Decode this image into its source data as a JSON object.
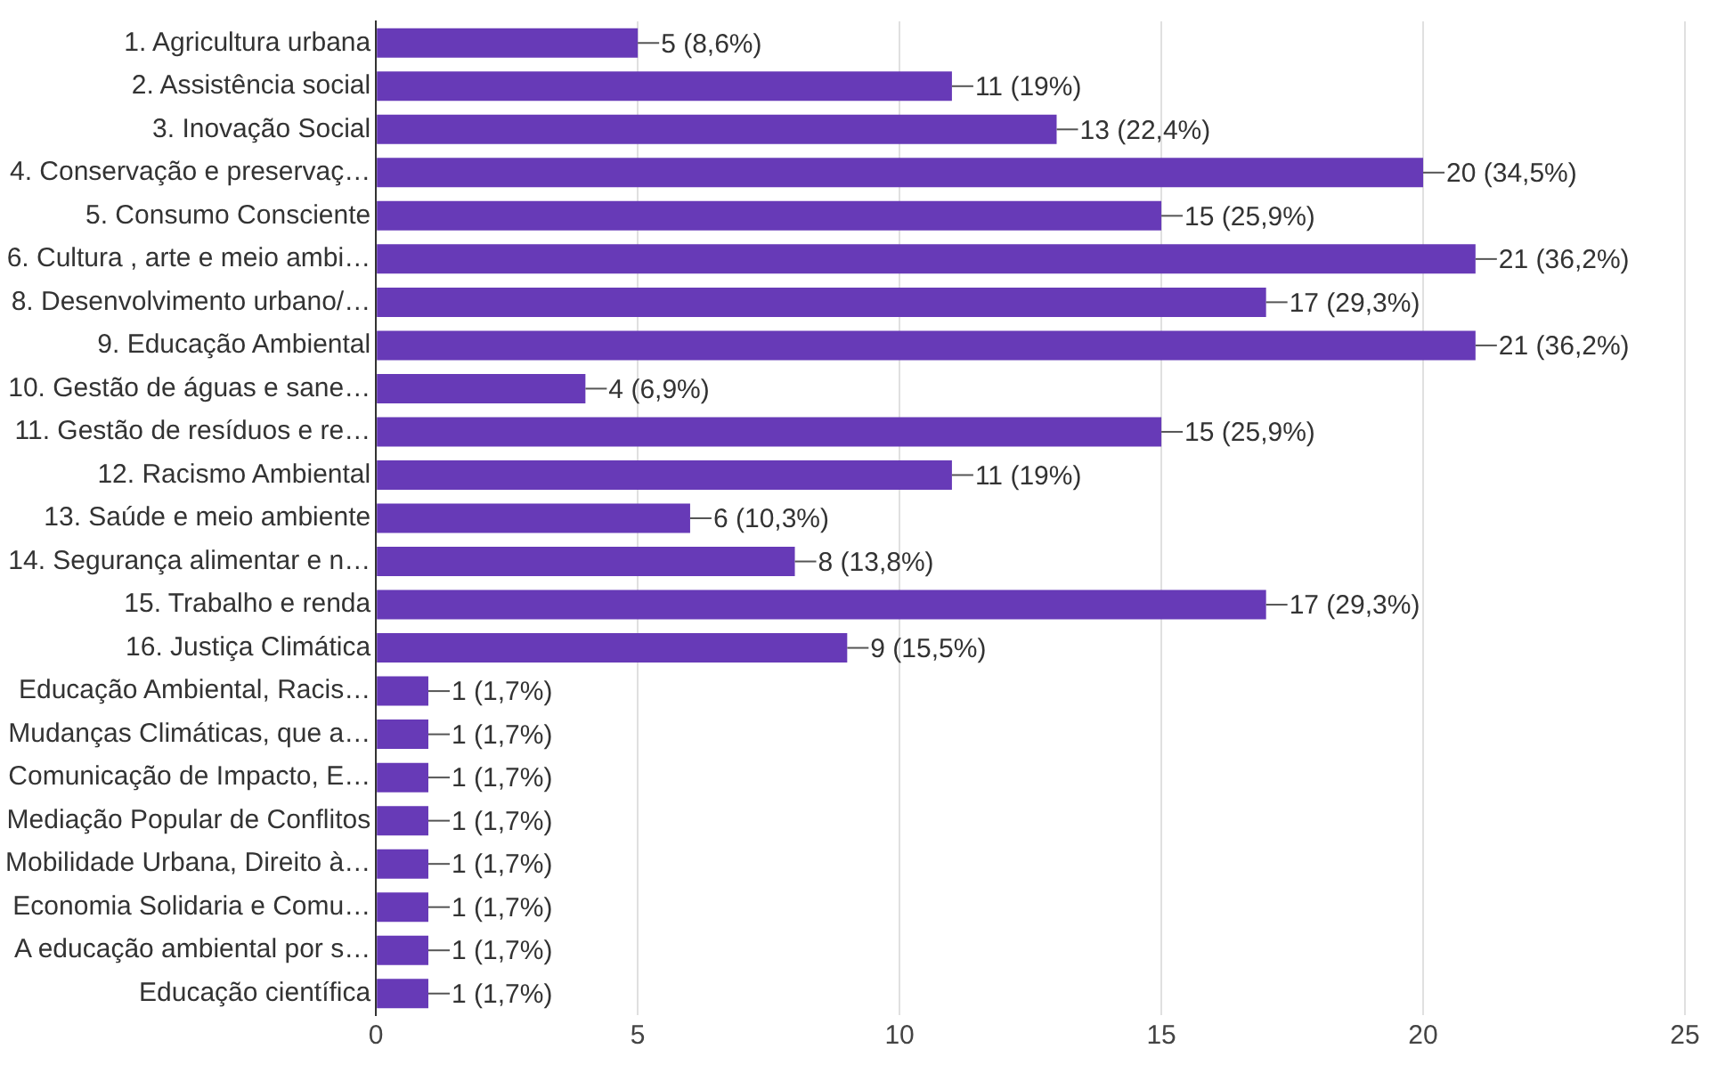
{
  "chart_data": {
    "type": "bar",
    "orientation": "horizontal",
    "categories": [
      "1. Agricultura urbana",
      "2. Assistência social",
      "3. Inovação Social",
      "4. Conservação e preservaç…",
      "5. Consumo Consciente",
      "6. Cultura , arte e meio ambi…",
      "8. Desenvolvimento urbano/…",
      "9. Educação Ambiental",
      "10. Gestão de águas e sane…",
      "11. Gestão de resíduos e re…",
      "12. Racismo Ambiental",
      "13. Saúde e meio ambiente",
      "14. Segurança alimentar e n…",
      "15. Trabalho e renda",
      "16. Justiça Climática",
      "Educação Ambiental, Racis…",
      "Mudanças Climáticas, que a…",
      "Comunicação de Impacto, E…",
      "Mediação Popular de Conflitos",
      "Mobilidade Urbana, Direito à…",
      "Economia Solidaria e Comu…",
      "A educação ambiental por s…",
      "Educação científica"
    ],
    "values": [
      5,
      11,
      13,
      20,
      15,
      21,
      17,
      21,
      4,
      15,
      11,
      6,
      8,
      17,
      9,
      1,
      1,
      1,
      1,
      1,
      1,
      1,
      1
    ],
    "value_labels": [
      "5 (8,6%)",
      "11 (19%)",
      "13 (22,4%)",
      "20 (34,5%)",
      "15 (25,9%)",
      "21 (36,2%)",
      "17 (29,3%)",
      "21 (36,2%)",
      "4 (6,9%)",
      "15 (25,9%)",
      "11 (19%)",
      "6 (10,3%)",
      "8 (13,8%)",
      "17 (29,3%)",
      "9 (15,5%)",
      "1 (1,7%)",
      "1 (1,7%)",
      "1 (1,7%)",
      "1 (1,7%)",
      "1 (1,7%)",
      "1 (1,7%)",
      "1 (1,7%)",
      "1 (1,7%)"
    ],
    "color": "#673ab7",
    "xlim": [
      0,
      25
    ],
    "xticks": [
      0,
      5,
      10,
      15,
      20,
      25
    ],
    "grid": "x",
    "legend": false
  }
}
